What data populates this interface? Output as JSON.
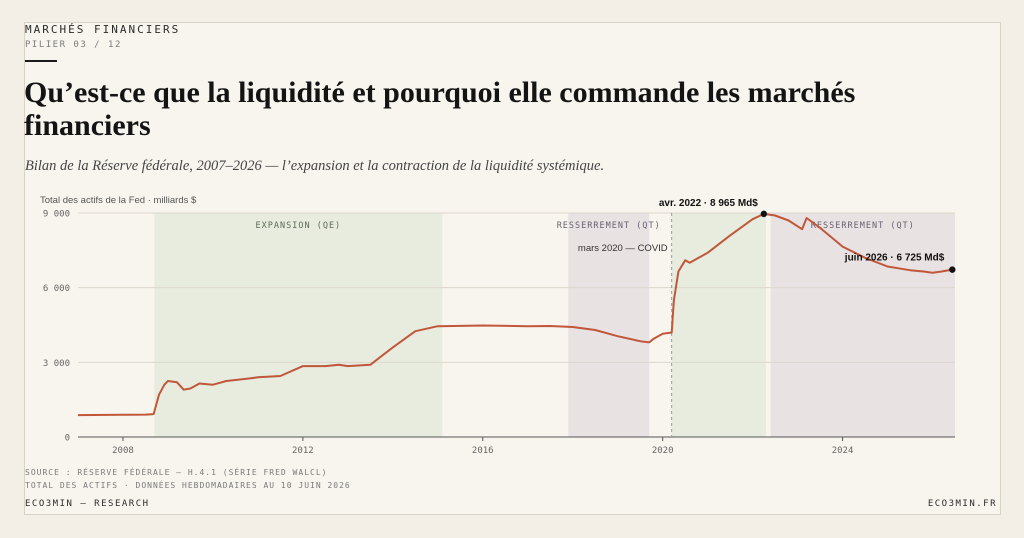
{
  "header": {
    "kicker": "MARCHÉS FINANCIERS",
    "sub_kicker": "PILIER 03 / 12",
    "title": "Qu’est-ce que la liquidité et pourquoi elle commande les marchés financiers",
    "subtitle": "Bilan de la Réserve fédérale, 2007–2026 — l’expansion et la contraction de la liquidité systémique."
  },
  "colors": {
    "line": "#c0573a",
    "qe_band": "#e7ecdf",
    "qt_band": "#e8e2e2",
    "grid": "#dcd7cd",
    "text": "#2b2b2b"
  },
  "chart_data": {
    "type": "line",
    "ylabel": "Total des actifs de la Fed · milliards $",
    "ylim": [
      0,
      9000
    ],
    "xlim": [
      2007,
      2026.5
    ],
    "y_ticks": [
      {
        "v": 0,
        "label": "0"
      },
      {
        "v": 3000,
        "label": "3 000"
      },
      {
        "v": 6000,
        "label": "6 000"
      },
      {
        "v": 9000,
        "label": "9 000"
      }
    ],
    "x_ticks": [
      {
        "v": 2008,
        "label": "2008"
      },
      {
        "v": 2012,
        "label": "2012"
      },
      {
        "v": 2016,
        "label": "2016"
      },
      {
        "v": 2020,
        "label": "2020"
      },
      {
        "v": 2024,
        "label": "2024"
      }
    ],
    "bands": [
      {
        "kind": "qe",
        "from": 2008.7,
        "to": 2015.1,
        "label": "EXPANSION (QE)"
      },
      {
        "kind": "qt",
        "from": 2017.9,
        "to": 2019.7,
        "label": "RESSERREMENT (QT)"
      },
      {
        "kind": "qe",
        "from": 2020.2,
        "to": 2022.3,
        "label": ""
      },
      {
        "kind": "qt",
        "from": 2022.4,
        "to": 2026.5,
        "label": "RESSERREMENT (QT)"
      }
    ],
    "events": [
      {
        "x": 2020.2,
        "label": "mars 2020 — COVID"
      }
    ],
    "points": [
      [
        2007.0,
        880
      ],
      [
        2008.0,
        890
      ],
      [
        2008.5,
        900
      ],
      [
        2008.68,
        920
      ],
      [
        2008.8,
        1700
      ],
      [
        2008.92,
        2100
      ],
      [
        2009.0,
        2250
      ],
      [
        2009.2,
        2200
      ],
      [
        2009.35,
        1900
      ],
      [
        2009.5,
        1950
      ],
      [
        2009.7,
        2150
      ],
      [
        2010.0,
        2100
      ],
      [
        2010.3,
        2250
      ],
      [
        2010.8,
        2350
      ],
      [
        2011.0,
        2400
      ],
      [
        2011.2,
        2420
      ],
      [
        2011.5,
        2450
      ],
      [
        2012.0,
        2850
      ],
      [
        2012.5,
        2850
      ],
      [
        2012.8,
        2900
      ],
      [
        2013.0,
        2850
      ],
      [
        2013.5,
        2900
      ],
      [
        2014.0,
        3600
      ],
      [
        2014.5,
        4250
      ],
      [
        2015.0,
        4450
      ],
      [
        2016.0,
        4480
      ],
      [
        2017.0,
        4450
      ],
      [
        2017.5,
        4460
      ],
      [
        2018.0,
        4420
      ],
      [
        2018.5,
        4300
      ],
      [
        2019.0,
        4050
      ],
      [
        2019.5,
        3850
      ],
      [
        2019.7,
        3800
      ],
      [
        2019.8,
        3950
      ],
      [
        2020.0,
        4150
      ],
      [
        2020.2,
        4200
      ],
      [
        2020.25,
        5500
      ],
      [
        2020.35,
        6650
      ],
      [
        2020.5,
        7100
      ],
      [
        2020.6,
        7000
      ],
      [
        2021.0,
        7400
      ],
      [
        2021.5,
        8100
      ],
      [
        2022.0,
        8750
      ],
      [
        2022.25,
        8965
      ],
      [
        2022.5,
        8900
      ],
      [
        2022.8,
        8700
      ],
      [
        2023.1,
        8350
      ],
      [
        2023.2,
        8800
      ],
      [
        2023.5,
        8400
      ],
      [
        2024.0,
        7650
      ],
      [
        2024.5,
        7200
      ],
      [
        2025.0,
        6850
      ],
      [
        2025.5,
        6700
      ],
      [
        2025.8,
        6650
      ],
      [
        2026.0,
        6600
      ],
      [
        2026.2,
        6650
      ],
      [
        2026.44,
        6725
      ]
    ],
    "annotations": [
      {
        "x": 2022.25,
        "y": 8965,
        "label": "avr. 2022 · 8 965 Md$"
      },
      {
        "x": 2026.44,
        "y": 6725,
        "label": "juin 2026 · 6 725 Md$"
      }
    ]
  },
  "footer": {
    "source_line1": "SOURCE : RÉSERVE FÉDÉRALE — H.4.1 (SÉRIE FRED WALCL)",
    "source_line2": "TOTAL DES ACTIFS · DONNÉES HEBDOMADAIRES AU 10 JUIN 2026",
    "left": "ECO3MIN — RESEARCH",
    "right": "ECO3MIN.FR"
  }
}
